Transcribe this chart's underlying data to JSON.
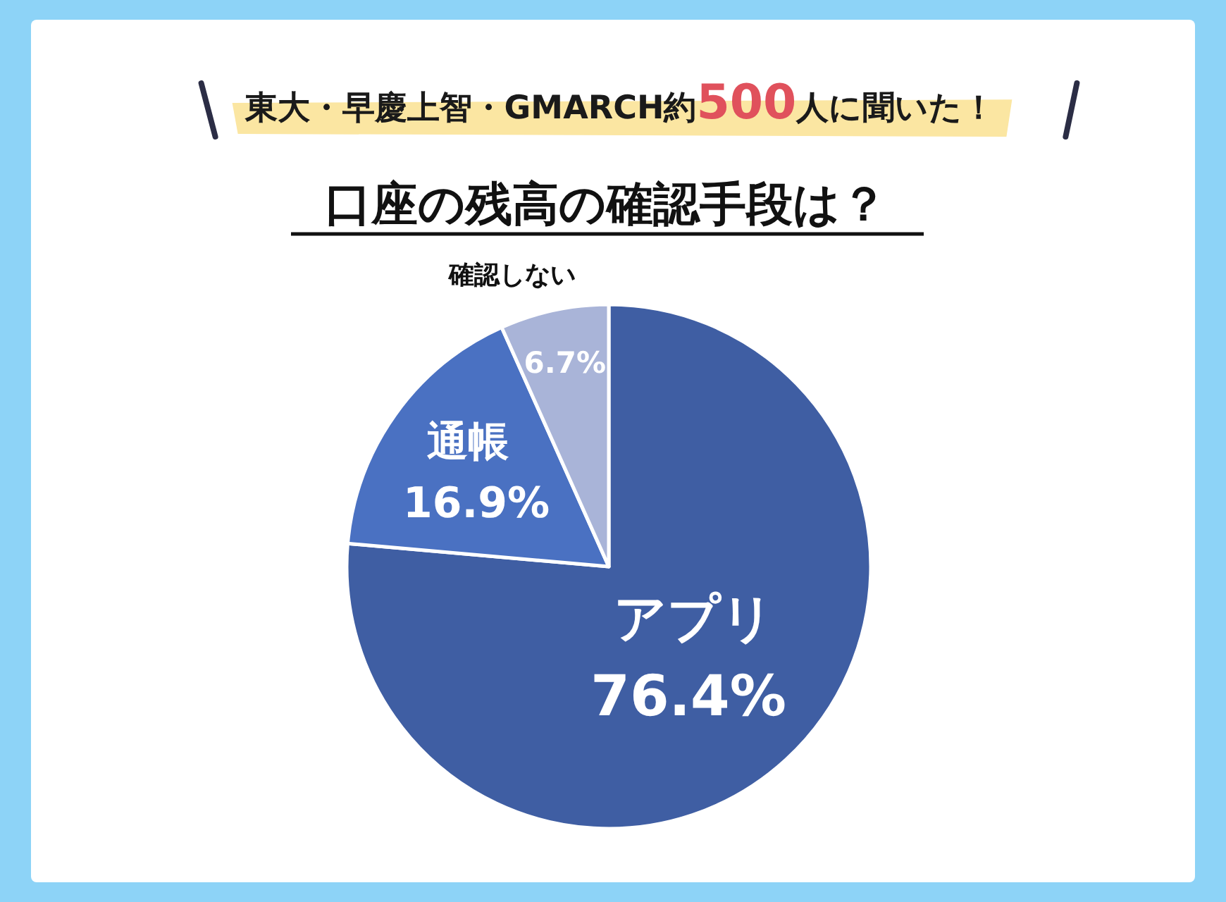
{
  "chart_data": {
    "type": "pie",
    "title": "口座の残高の確認手段は？",
    "subtitle": "東大・早慶上智・GMARCH約**500**人に聞いた！",
    "categories": [
      "アプリ",
      "通帳",
      "確認しない"
    ],
    "values": [
      76.4,
      16.9,
      6.7
    ],
    "colors": [
      "#3f5ea3",
      "#4a71c2",
      "#a9b4d8"
    ],
    "value_labels": [
      "76.4%",
      "16.9%",
      "6.7%"
    ]
  }
}
